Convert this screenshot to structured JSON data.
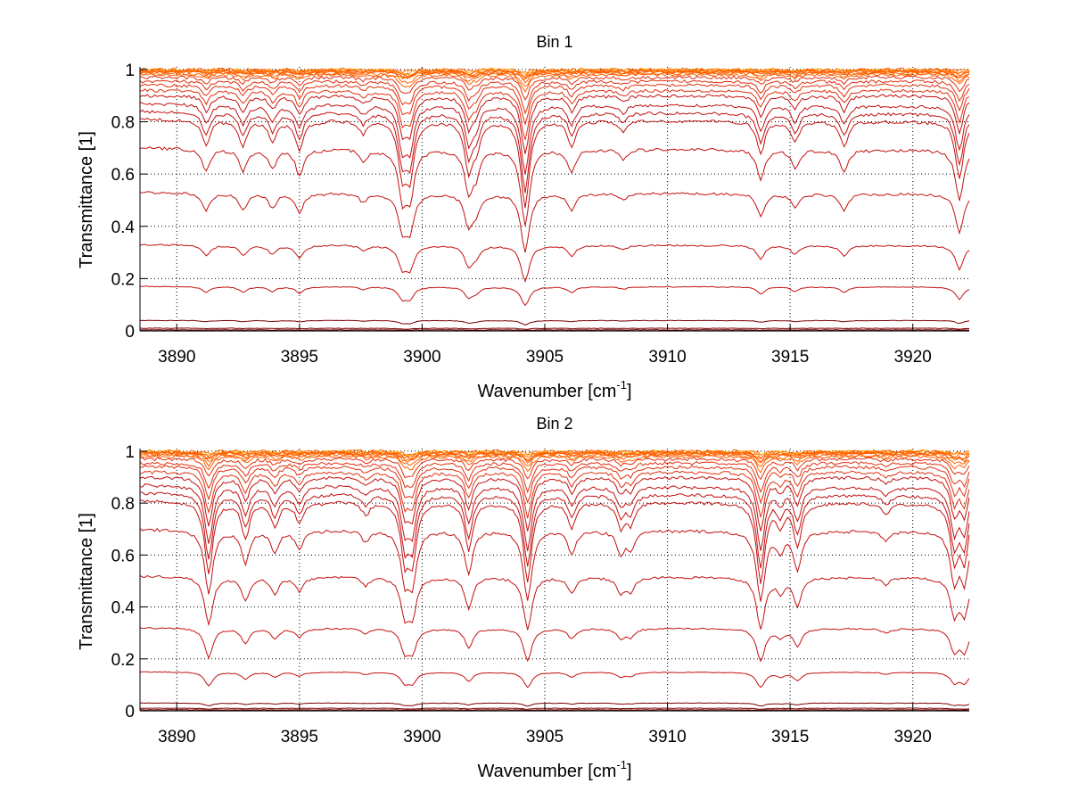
{
  "chart_data": [
    {
      "type": "line",
      "title": "Bin 1",
      "xlabel": "Wavenumber [cm",
      "xlabel_sup": "-1",
      "xlabel_end": "]",
      "ylabel": "Transmittance [1]",
      "xlim": [
        3888.5,
        3922.3
      ],
      "ylim": [
        0,
        1.01
      ],
      "xticks": [
        3890,
        3895,
        3900,
        3905,
        3910,
        3915,
        3920
      ],
      "yticks": [
        0,
        0.2,
        0.4,
        0.6,
        0.8,
        1
      ],
      "ytick_labels": [
        "0",
        "0.2",
        "0.4",
        "0.6",
        "0.8",
        "1"
      ],
      "grid": true,
      "series_baselines": [
        1.0,
        0.998,
        0.996,
        0.994,
        0.992,
        0.99,
        0.985,
        0.98,
        0.97,
        0.955,
        0.94,
        0.92,
        0.9,
        0.87,
        0.84,
        0.81,
        0.7,
        0.53,
        0.33,
        0.17,
        0.04,
        0.01,
        0.004
      ],
      "absorption_lines": [
        {
          "center": 3891.2,
          "strength": 0.12
        },
        {
          "center": 3892.7,
          "strength": 0.12
        },
        {
          "center": 3893.9,
          "strength": 0.1
        },
        {
          "center": 3895.0,
          "strength": 0.14
        },
        {
          "center": 3897.6,
          "strength": 0.06
        },
        {
          "center": 3899.2,
          "strength": 0.28
        },
        {
          "center": 3899.5,
          "strength": 0.28
        },
        {
          "center": 3901.9,
          "strength": 0.25
        },
        {
          "center": 3902.2,
          "strength": 0.12
        },
        {
          "center": 3904.2,
          "strength": 0.5
        },
        {
          "center": 3906.1,
          "strength": 0.12
        },
        {
          "center": 3908.2,
          "strength": 0.05
        },
        {
          "center": 3913.8,
          "strength": 0.16
        },
        {
          "center": 3915.2,
          "strength": 0.1
        },
        {
          "center": 3917.2,
          "strength": 0.12
        },
        {
          "center": 3921.9,
          "strength": 0.3
        }
      ]
    },
    {
      "type": "line",
      "title": "Bin 2",
      "xlabel": "Wavenumber [cm",
      "xlabel_sup": "-1",
      "xlabel_end": "]",
      "ylabel": "Transmittance [1]",
      "xlim": [
        3888.5,
        3922.3
      ],
      "ylim": [
        0,
        1.01
      ],
      "xticks": [
        3890,
        3895,
        3900,
        3905,
        3910,
        3915,
        3920
      ],
      "yticks": [
        0,
        0.2,
        0.4,
        0.6,
        0.8,
        1
      ],
      "ytick_labels": [
        "0",
        "0.2",
        "0.4",
        "0.6",
        "0.8",
        "1"
      ],
      "grid": true,
      "series_baselines": [
        1.0,
        0.998,
        0.996,
        0.994,
        0.992,
        0.99,
        0.985,
        0.98,
        0.97,
        0.955,
        0.94,
        0.92,
        0.9,
        0.87,
        0.84,
        0.81,
        0.7,
        0.52,
        0.32,
        0.15,
        0.03,
        0.01,
        0.004
      ],
      "absorption_lines": [
        {
          "center": 3891.3,
          "strength": 0.4
        },
        {
          "center": 3892.8,
          "strength": 0.18
        },
        {
          "center": 3894.0,
          "strength": 0.12
        },
        {
          "center": 3895.0,
          "strength": 0.1
        },
        {
          "center": 3897.7,
          "strength": 0.06
        },
        {
          "center": 3899.3,
          "strength": 0.3
        },
        {
          "center": 3899.6,
          "strength": 0.3
        },
        {
          "center": 3901.9,
          "strength": 0.25
        },
        {
          "center": 3904.3,
          "strength": 0.45
        },
        {
          "center": 3906.1,
          "strength": 0.12
        },
        {
          "center": 3908.1,
          "strength": 0.12
        },
        {
          "center": 3908.5,
          "strength": 0.1
        },
        {
          "center": 3913.8,
          "strength": 0.45
        },
        {
          "center": 3914.6,
          "strength": 0.1
        },
        {
          "center": 3915.3,
          "strength": 0.22
        },
        {
          "center": 3918.9,
          "strength": 0.05
        },
        {
          "center": 3921.7,
          "strength": 0.3
        },
        {
          "center": 3922.1,
          "strength": 0.3
        }
      ]
    }
  ],
  "colors": {
    "deep": "#7a0000",
    "main": "#c41010",
    "mid": "#e03010",
    "high": "#ff6000",
    "top": "#ffb000",
    "accent": "#2a8fd0"
  }
}
